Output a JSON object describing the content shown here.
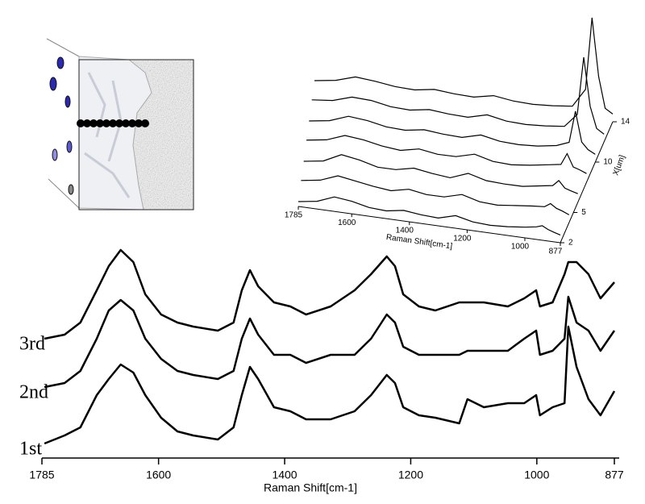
{
  "chart_data": [
    {
      "type": "line",
      "xlabel": "Raman Shift[cm-1]",
      "xlim": [
        1785,
        877
      ],
      "xticks": [
        1785,
        1600,
        1400,
        1200,
        1000,
        877
      ],
      "ylim": [
        0,
        265
      ],
      "x": [
        1781,
        1749,
        1724,
        1698,
        1679,
        1660,
        1640,
        1621,
        1596,
        1570,
        1545,
        1506,
        1481,
        1468,
        1455,
        1442,
        1417,
        1391,
        1366,
        1327,
        1289,
        1263,
        1238,
        1225,
        1212,
        1187,
        1161,
        1123,
        1110,
        1084,
        1046,
        1020,
        1001,
        995,
        975,
        956,
        950,
        937,
        918,
        899,
        877
      ],
      "series": [
        {
          "name": "1st",
          "color": "#000000",
          "values": [
            15,
            25,
            35,
            75,
            95,
            113,
            103,
            75,
            47,
            30,
            25,
            20,
            35,
            75,
            110,
            95,
            60,
            55,
            45,
            45,
            55,
            75,
            100,
            90,
            60,
            50,
            47,
            40,
            70,
            60,
            65,
            65,
            75,
            50,
            60,
            65,
            160,
            110,
            70,
            50,
            80
          ]
        },
        {
          "name": "2nd",
          "color": "#000000",
          "values": [
            85,
            90,
            105,
            145,
            180,
            193,
            180,
            145,
            120,
            105,
            100,
            95,
            105,
            145,
            170,
            150,
            125,
            125,
            115,
            125,
            125,
            145,
            175,
            165,
            135,
            125,
            125,
            125,
            130,
            130,
            130,
            145,
            155,
            125,
            130,
            145,
            197,
            165,
            155,
            130,
            155
          ]
        },
        {
          "name": "3rd",
          "color": "#000000",
          "values": [
            145,
            150,
            165,
            205,
            235,
            255,
            240,
            200,
            175,
            165,
            160,
            155,
            165,
            205,
            230,
            210,
            190,
            185,
            175,
            185,
            205,
            225,
            247,
            235,
            200,
            185,
            180,
            190,
            190,
            190,
            185,
            195,
            205,
            185,
            190,
            225,
            240,
            240,
            225,
            195,
            215
          ]
        }
      ]
    },
    {
      "type": "waterfall",
      "xlabel": "Raman Shift[cm-1]",
      "zlabel": "X[um]",
      "xlim": [
        1785,
        877
      ],
      "xticks": [
        1785,
        1600,
        1400,
        1200,
        1000,
        877
      ],
      "zlim": [
        2,
        14
      ],
      "zticks": [
        2,
        5,
        10,
        14
      ],
      "vlim": [
        0,
        100
      ],
      "x": [
        1785,
        1720,
        1660,
        1600,
        1540,
        1480,
        1420,
        1360,
        1300,
        1240,
        1180,
        1120,
        1060,
        1000,
        960,
        940,
        920,
        900,
        877
      ],
      "series": [
        {
          "z": 2,
          "color": "#000000",
          "values": [
            0,
            3,
            10,
            8,
            4,
            3,
            6,
            4,
            3,
            8,
            4,
            3,
            4,
            6,
            8,
            10,
            7,
            5,
            3
          ]
        },
        {
          "z": 4,
          "color": "#000000",
          "values": [
            1,
            4,
            11,
            8,
            5,
            3,
            7,
            4,
            4,
            9,
            4,
            3,
            5,
            7,
            8,
            12,
            8,
            6,
            3
          ]
        },
        {
          "z": 6,
          "color": "#000000",
          "values": [
            0,
            3,
            12,
            9,
            4,
            4,
            8,
            5,
            3,
            10,
            5,
            4,
            4,
            7,
            9,
            15,
            8,
            6,
            4
          ]
        },
        {
          "z": 8,
          "color": "#000000",
          "values": [
            1,
            4,
            11,
            9,
            5,
            3,
            7,
            4,
            4,
            9,
            4,
            3,
            5,
            8,
            10,
            22,
            9,
            7,
            4
          ]
        },
        {
          "z": 10,
          "color": "#000000",
          "values": [
            0,
            3,
            10,
            8,
            4,
            3,
            6,
            4,
            3,
            8,
            4,
            3,
            4,
            7,
            12,
            45,
            14,
            7,
            3
          ]
        },
        {
          "z": 12,
          "color": "#000000",
          "values": [
            1,
            3,
            9,
            8,
            4,
            3,
            6,
            4,
            3,
            8,
            4,
            3,
            4,
            6,
            20,
            80,
            30,
            8,
            3
          ]
        },
        {
          "z": 14,
          "color": "#000000",
          "values": [
            0,
            3,
            9,
            7,
            4,
            3,
            6,
            4,
            3,
            7,
            4,
            3,
            4,
            6,
            25,
            100,
            40,
            8,
            3
          ]
        }
      ]
    }
  ]
}
